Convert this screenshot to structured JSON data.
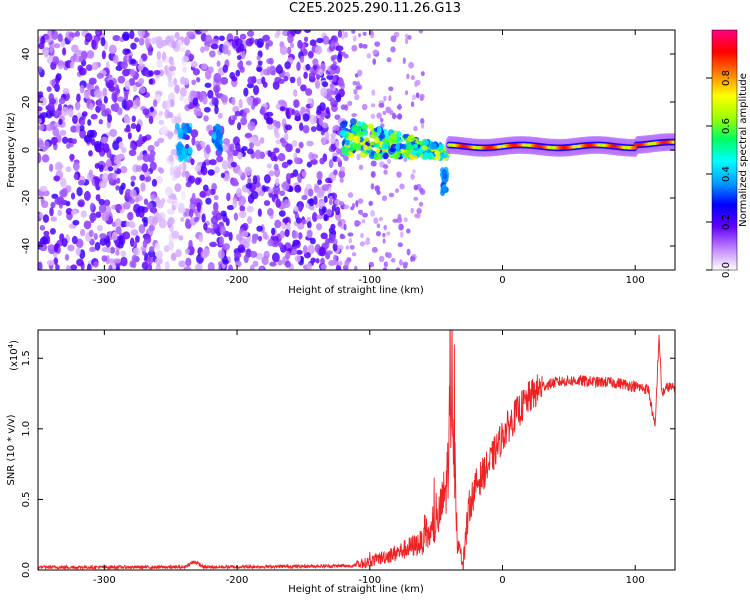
{
  "title": "C2E5.2025.290.11.26.G13",
  "chart_data": [
    {
      "type": "heatmap",
      "name": "spectrogram",
      "xlabel": "Height of straight line (km)",
      "ylabel": "Frequency (Hz)",
      "xlim": [
        -350,
        130
      ],
      "ylim": [
        -50,
        50
      ],
      "xticks": [
        -300,
        -200,
        -100,
        0,
        100
      ],
      "xtick_labels": [
        "-300",
        "-200",
        "-100",
        "0",
        "100"
      ],
      "yticks": [
        -40,
        -20,
        0,
        20,
        40
      ],
      "ytick_labels": [
        "-40",
        "-20",
        "0",
        "20",
        "40"
      ],
      "colorbar": {
        "label": "Normalized spectral amplitude",
        "range": [
          0,
          1
        ],
        "ticks": [
          0,
          0.2,
          0.4,
          0.6,
          0.8
        ],
        "tick_labels": [
          "0.0",
          "0.2",
          "0.4",
          "0.6",
          "0.8"
        ],
        "colors": [
          "#ffffff",
          "#c080ff",
          "#6000ff",
          "#0000ff",
          "#00a0ff",
          "#00ffff",
          "#00ff60",
          "#a0ff00",
          "#ffff00",
          "#ff8000",
          "#ff0000",
          "#ff0080"
        ]
      },
      "features": [
        {
          "region": "broadband noise",
          "x_range": [
            -350,
            -120
          ],
          "freq_range": [
            -50,
            50
          ],
          "amplitude": 0.15
        },
        {
          "region": "transition",
          "x_range": [
            -120,
            -40
          ],
          "freq_center": 2,
          "amplitude": 0.5
        },
        {
          "region": "carrier line",
          "x_range": [
            -40,
            130
          ],
          "freq": 1.5,
          "amplitude": 0.9
        }
      ]
    },
    {
      "type": "line",
      "name": "snr",
      "xlabel": "Height of straight line (km)",
      "ylabel": "SNR (10 * v/v)",
      "multiplier_label": "(x10",
      "multiplier_exp": "4",
      "multiplier_close": ")",
      "xlim": [
        -350,
        130
      ],
      "ylim": [
        0,
        1.7
      ],
      "xticks": [
        -300,
        -200,
        -100,
        0,
        100
      ],
      "xtick_labels": [
        "-300",
        "-200",
        "-100",
        "0",
        "100"
      ],
      "yticks": [
        0.0,
        0.5,
        1.0,
        1.5
      ],
      "ytick_labels": [
        "0.0",
        "0.5",
        "1.0",
        "1.5"
      ],
      "color": "#ee2222",
      "profile_x": [
        -350,
        -240,
        -232,
        -225,
        -110,
        -80,
        -60,
        -50,
        -42,
        -38,
        -34,
        -30,
        -25,
        -20,
        -10,
        0,
        10,
        20,
        30,
        40,
        50,
        60,
        70,
        80,
        90,
        100,
        110,
        115,
        118,
        120,
        125,
        130
      ],
      "profile_y": [
        0.02,
        0.02,
        0.06,
        0.02,
        0.03,
        0.12,
        0.2,
        0.3,
        0.6,
        1.4,
        0.2,
        0.05,
        0.45,
        0.6,
        0.75,
        0.95,
        1.1,
        1.22,
        1.3,
        1.33,
        1.34,
        1.34,
        1.33,
        1.33,
        1.32,
        1.3,
        1.28,
        1.0,
        1.67,
        1.25,
        1.3,
        1.28
      ]
    }
  ]
}
